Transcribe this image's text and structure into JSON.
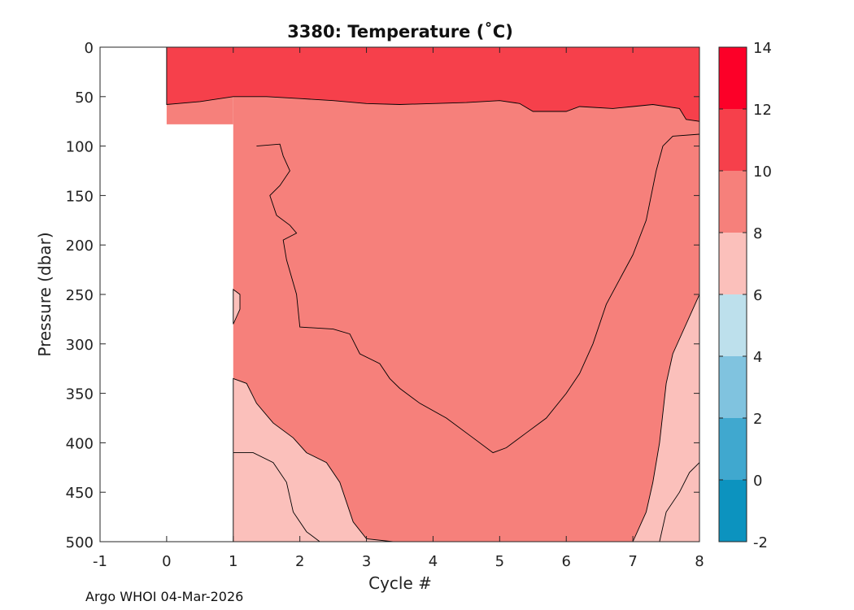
{
  "chart_data": {
    "type": "heatmap",
    "title": "3380:  Temperature (˚C)",
    "xlabel": "Cycle #",
    "ylabel": "Pressure (dbar)",
    "xlim": [
      -1,
      8
    ],
    "ylim": [
      0,
      500
    ],
    "y_reversed": true,
    "x_ticks": [
      "-1",
      "0",
      "1",
      "2",
      "3",
      "4",
      "5",
      "6",
      "7",
      "8"
    ],
    "y_ticks": [
      "0",
      "50",
      "100",
      "150",
      "200",
      "250",
      "300",
      "350",
      "400",
      "450",
      "500"
    ],
    "colorbar": {
      "range": [
        -2,
        14
      ],
      "ticks": [
        "-2",
        "0",
        "2",
        "4",
        "6",
        "8",
        "10",
        "12",
        "14"
      ],
      "bands": [
        {
          "from": -2,
          "to": 0,
          "color": "#0c93bf"
        },
        {
          "from": 0,
          "to": 2,
          "color": "#40a8cf"
        },
        {
          "from": 2,
          "to": 4,
          "color": "#80c3df"
        },
        {
          "from": 4,
          "to": 6,
          "color": "#bde0ec"
        },
        {
          "from": 6,
          "to": 8,
          "color": "#fbc0bb"
        },
        {
          "from": 8,
          "to": 10,
          "color": "#f6807b"
        },
        {
          "from": 10,
          "to": 12,
          "color": "#f6404b"
        },
        {
          "from": 12,
          "to": 14,
          "color": "#fc0028"
        }
      ]
    },
    "coverage": [
      {
        "cycle_from": 0,
        "cycle_to": 1,
        "pressure_max": 78
      },
      {
        "cycle_from": 1,
        "cycle_to": 8,
        "pressure_max": 500
      }
    ],
    "contours": [
      {
        "level": 10,
        "fill": "#f6404b",
        "points": [
          [
            0,
            0
          ],
          [
            8,
            0
          ],
          [
            8,
            75
          ],
          [
            7.8,
            73
          ],
          [
            7.7,
            62
          ],
          [
            7.3,
            58
          ],
          [
            7,
            60
          ],
          [
            6.7,
            62
          ],
          [
            6.2,
            60
          ],
          [
            6,
            65
          ],
          [
            5.5,
            65
          ],
          [
            5.3,
            57
          ],
          [
            5,
            54
          ],
          [
            4.5,
            56
          ],
          [
            4,
            57
          ],
          [
            3.5,
            58
          ],
          [
            3,
            57
          ],
          [
            2.5,
            54
          ],
          [
            2,
            52
          ],
          [
            1.5,
            50
          ],
          [
            1,
            50
          ],
          [
            0.5,
            55
          ],
          [
            0,
            58
          ]
        ]
      },
      {
        "level": 8,
        "fill": "#fbc0bb",
        "points": [
          [
            1,
            280
          ],
          [
            1.1,
            265
          ],
          [
            1.1,
            250
          ],
          [
            1,
            245
          ]
        ]
      },
      {
        "level": 8,
        "fill": "#fbc0bb",
        "points": [
          [
            1,
            335
          ],
          [
            1.2,
            340
          ],
          [
            1.35,
            360
          ],
          [
            1.6,
            380
          ],
          [
            1.9,
            395
          ],
          [
            2.1,
            410
          ],
          [
            2.4,
            420
          ],
          [
            2.6,
            440
          ],
          [
            2.8,
            480
          ],
          [
            3.0,
            497
          ],
          [
            3.4,
            500
          ],
          [
            1,
            500
          ]
        ]
      },
      {
        "level": 8,
        "fill": "#fbc0bb",
        "points": [
          [
            7.0,
            500
          ],
          [
            7.2,
            470
          ],
          [
            7.3,
            440
          ],
          [
            7.4,
            400
          ],
          [
            7.5,
            340
          ],
          [
            7.6,
            310
          ],
          [
            7.8,
            280
          ],
          [
            8,
            250
          ],
          [
            8,
            500
          ]
        ]
      },
      {
        "level": 6,
        "fill": "#fbc0bb",
        "points": [
          [
            1,
            410
          ],
          [
            1.3,
            410
          ],
          [
            1.6,
            420
          ],
          [
            1.8,
            440
          ],
          [
            1.9,
            470
          ],
          [
            2.1,
            490
          ],
          [
            2.3,
            500
          ]
        ],
        "open": true
      },
      {
        "level": 6,
        "fill": "#fbc0bb",
        "points": [
          [
            7.4,
            500
          ],
          [
            7.5,
            470
          ],
          [
            7.7,
            450
          ],
          [
            7.85,
            430
          ],
          [
            8,
            420
          ]
        ],
        "open": true
      },
      {
        "level": 8,
        "fill": "none",
        "points": [
          [
            1.35,
            100
          ],
          [
            1.7,
            98
          ],
          [
            1.75,
            110
          ],
          [
            1.85,
            125
          ],
          [
            1.7,
            140
          ],
          [
            1.55,
            150
          ],
          [
            1.65,
            170
          ],
          [
            1.85,
            180
          ],
          [
            1.95,
            188
          ],
          [
            1.75,
            195
          ],
          [
            1.8,
            215
          ],
          [
            1.95,
            250
          ],
          [
            2.0,
            283
          ],
          [
            2.5,
            285
          ],
          [
            2.75,
            290
          ],
          [
            2.9,
            310
          ],
          [
            3.2,
            320
          ],
          [
            3.35,
            335
          ],
          [
            3.5,
            345
          ],
          [
            3.8,
            360
          ],
          [
            4.2,
            375
          ],
          [
            4.6,
            395
          ],
          [
            4.9,
            410
          ],
          [
            5.1,
            405
          ],
          [
            5.4,
            390
          ],
          [
            5.7,
            375
          ],
          [
            6.0,
            350
          ],
          [
            6.2,
            330
          ],
          [
            6.4,
            300
          ],
          [
            6.6,
            260
          ],
          [
            6.8,
            235
          ],
          [
            7.0,
            210
          ],
          [
            7.2,
            175
          ],
          [
            7.35,
            125
          ],
          [
            7.45,
            100
          ],
          [
            7.6,
            90
          ],
          [
            8,
            88
          ]
        ],
        "open": true
      }
    ]
  },
  "footer": {
    "text": "Argo WHOI 04-Mar-2026"
  }
}
